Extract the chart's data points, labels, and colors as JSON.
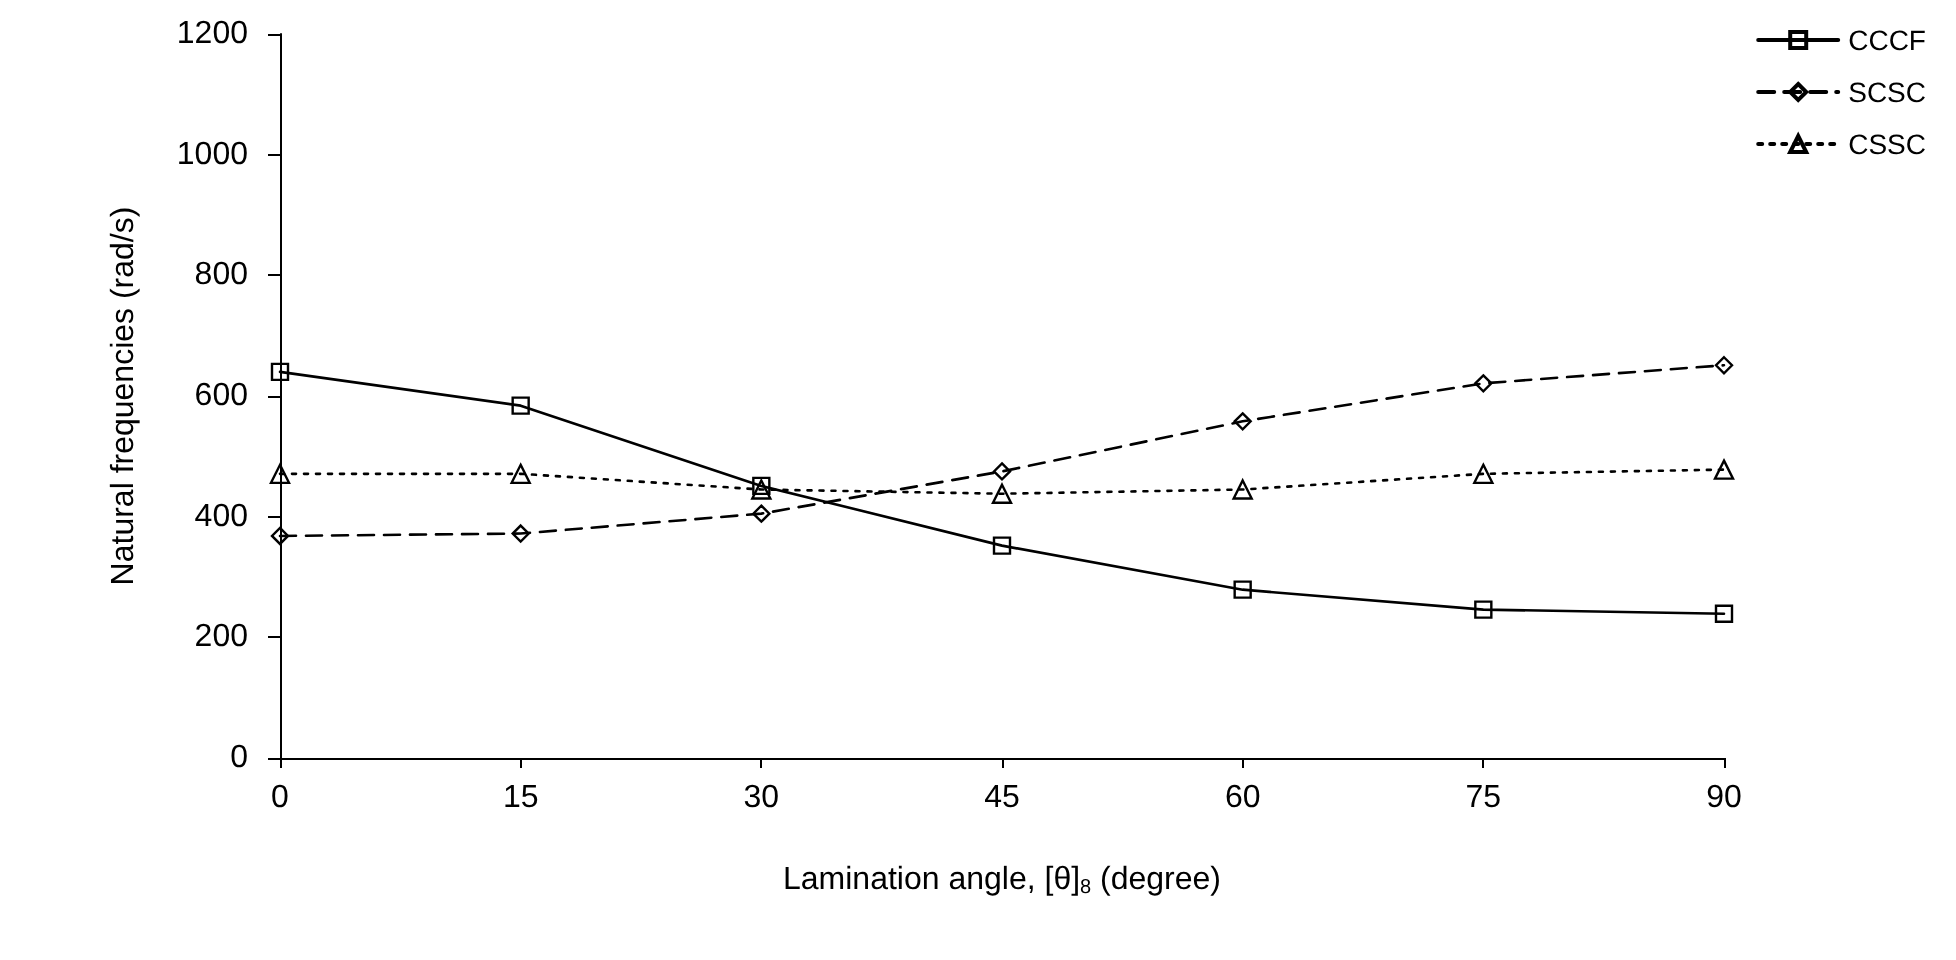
{
  "chart_data": {
    "type": "line",
    "xlabel": "Lamination angle, [θ]$_{8}$ (degree)",
    "ylabel": "Natural frequencies (rad/s)",
    "x": [
      0,
      15,
      30,
      45,
      60,
      75,
      90
    ],
    "series": [
      {
        "name": "CCCF",
        "color": "#000000",
        "marker": "square",
        "line_style": "solid",
        "values": [
          640,
          584,
          451,
          352,
          279,
          246,
          239
        ]
      },
      {
        "name": "SCSC",
        "color": "#000000",
        "marker": "diamond",
        "line_style": "dashed",
        "values": [
          368,
          372,
          405,
          475,
          558,
          621,
          651
        ]
      },
      {
        "name": "CSSC",
        "color": "#000000",
        "marker": "triangle",
        "line_style": "dotted",
        "values": [
          471,
          471,
          445,
          438,
          445,
          471,
          478
        ]
      }
    ],
    "xlim": [
      0,
      90
    ],
    "xticks": [
      0,
      15,
      30,
      45,
      60,
      75,
      90
    ],
    "ylim": [
      0,
      1200
    ],
    "yticks": [
      0,
      200,
      400,
      600,
      800,
      1000,
      1200
    ],
    "grid": false,
    "legend": "top right"
  }
}
